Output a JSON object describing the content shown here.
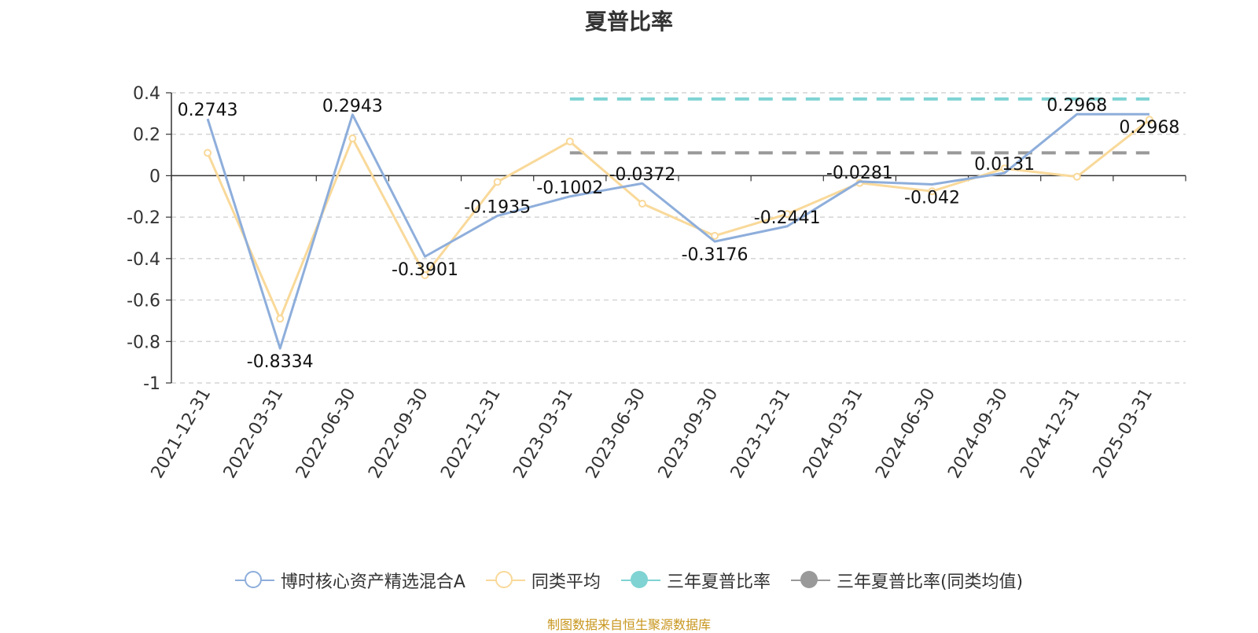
{
  "chart_data": {
    "type": "line",
    "title": "夏普比率",
    "source_note": "制图数据来自恒生聚源数据库",
    "categories": [
      "2021-12-31",
      "2022-03-31",
      "2022-06-30",
      "2022-09-30",
      "2022-12-31",
      "2023-03-31",
      "2023-06-30",
      "2023-09-30",
      "2023-12-31",
      "2024-03-31",
      "2024-06-30",
      "2024-09-30",
      "2024-12-31",
      "2025-03-31"
    ],
    "ylim": [
      -1,
      0.4
    ],
    "yticks": [
      "0.4",
      "0.2",
      "0",
      "-0.2",
      "-0.4",
      "-0.6",
      "-0.8",
      "-1"
    ],
    "ytick_values": [
      0.4,
      0.2,
      0,
      -0.2,
      -0.4,
      -0.6,
      -0.8,
      -1
    ],
    "grid": true,
    "legend_position": "bottom",
    "series": [
      {
        "name": "博时核心资产精选混合A",
        "color": "#8eaedb",
        "values": [
          0.2743,
          -0.8334,
          0.2943,
          -0.3901,
          -0.1935,
          -0.1002,
          -0.0372,
          -0.3176,
          -0.2441,
          -0.0281,
          -0.042,
          0.0131,
          0.2968,
          0.2968
        ],
        "labels": [
          "0.2743",
          "-0.8334",
          "0.2943",
          "-0.3901",
          "-0.1935",
          "-0.1002",
          "-0.0372",
          "-0.3176",
          "-0.2441",
          "-0.0281",
          "-0.042",
          "0.0131",
          "0.2968",
          "0.2968"
        ]
      },
      {
        "name": "同类平均",
        "color": "#f9d99a",
        "values": [
          0.11,
          -0.69,
          0.18,
          -0.48,
          -0.03,
          0.165,
          -0.135,
          -0.29,
          -0.185,
          -0.035,
          -0.075,
          0.035,
          -0.005,
          0.27
        ]
      },
      {
        "name": "三年夏普比率",
        "color": "#7fd3d3",
        "line_style": "dashed",
        "constant": 0.37,
        "x_from": "2023-03-31",
        "x_to": "2025-03-31"
      },
      {
        "name": "三年夏普比率(同类均值)",
        "color": "#999999",
        "line_style": "dashed",
        "constant": 0.11,
        "x_from": "2023-03-31",
        "x_to": "2025-03-31"
      }
    ]
  }
}
